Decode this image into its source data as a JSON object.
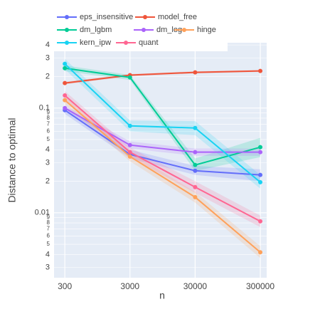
{
  "chart_data": {
    "type": "line",
    "x_label": "n",
    "y_label": "Distance to optimal",
    "x": [
      300,
      3000,
      30000,
      300000
    ],
    "xscale": "log",
    "yscale": "log",
    "grid": true,
    "legend": "top",
    "xlim": [
      205,
      376000
    ],
    "ylim": [
      0.0024,
      0.42
    ],
    "xticks": [
      300,
      3000,
      30000,
      300000
    ],
    "yticks": [
      {
        "value": 0.4,
        "label": "4"
      },
      {
        "value": 0.3,
        "label": "3"
      },
      {
        "value": 0.2,
        "label": "2"
      },
      0.1,
      {
        "value": 0.09,
        "label": "9"
      },
      {
        "value": 0.08,
        "label": "8"
      },
      {
        "value": 0.07,
        "label": "7"
      },
      {
        "value": 0.06,
        "label": "6"
      },
      {
        "value": 0.05,
        "label": "5"
      },
      {
        "value": 0.04,
        "label": "4"
      },
      {
        "value": 0.03,
        "label": "3"
      },
      {
        "value": 0.02,
        "label": "2"
      },
      0.01,
      {
        "value": 0.009,
        "label": "9"
      },
      {
        "value": 0.008,
        "label": "8"
      },
      {
        "value": 0.007,
        "label": "7"
      },
      {
        "value": 0.006,
        "label": "6"
      },
      {
        "value": 0.005,
        "label": "5"
      },
      {
        "value": 0.004,
        "label": "4"
      },
      {
        "value": 0.003,
        "label": "3"
      }
    ],
    "series": [
      {
        "name": "eps_insensitive",
        "color": "#636efa",
        "values": [
          0.0954,
          0.0361,
          0.0252,
          0.023
        ],
        "lower": [
          0.088,
          0.033,
          0.023,
          0.02
        ],
        "upper": [
          0.104,
          0.04,
          0.028,
          0.026
        ]
      },
      {
        "name": "model_free",
        "color": "#EF553B",
        "values": [
          0.173,
          0.206,
          0.219,
          0.226
        ],
        "lower": [
          0.168,
          0.201,
          0.214,
          0.221
        ],
        "upper": [
          0.178,
          0.211,
          0.224,
          0.231
        ]
      },
      {
        "name": "dm_lgbm",
        "color": "#00cc96",
        "values": [
          0.24,
          0.196,
          0.0286,
          0.0423
        ],
        "lower": [
          0.225,
          0.185,
          0.025,
          0.034
        ],
        "upper": [
          0.255,
          0.207,
          0.033,
          0.052
        ]
      },
      {
        "name": "dm_log",
        "color": "#ab63fa",
        "values": [
          0.1,
          0.0443,
          0.0379,
          0.0379
        ],
        "lower": [
          0.094,
          0.041,
          0.035,
          0.035
        ],
        "upper": [
          0.106,
          0.048,
          0.041,
          0.041
        ]
      },
      {
        "name": "hinge",
        "color": "#FFA15A",
        "values": [
          0.119,
          0.0344,
          0.0141,
          0.0042
        ],
        "lower": [
          0.108,
          0.031,
          0.0125,
          0.0037
        ],
        "upper": [
          0.131,
          0.038,
          0.0158,
          0.0048
        ]
      },
      {
        "name": "kern_ipw",
        "color": "#19d3f3",
        "values": [
          0.264,
          0.0676,
          0.0645,
          0.0196
        ],
        "lower": [
          0.235,
          0.06,
          0.055,
          0.017
        ],
        "upper": [
          0.295,
          0.076,
          0.075,
          0.023
        ]
      },
      {
        "name": "quant",
        "color": "#FF6692",
        "values": [
          0.132,
          0.0379,
          0.0176,
          0.0083
        ],
        "lower": [
          0.12,
          0.034,
          0.0155,
          0.0073
        ],
        "upper": [
          0.145,
          0.042,
          0.02,
          0.0094
        ]
      }
    ]
  }
}
